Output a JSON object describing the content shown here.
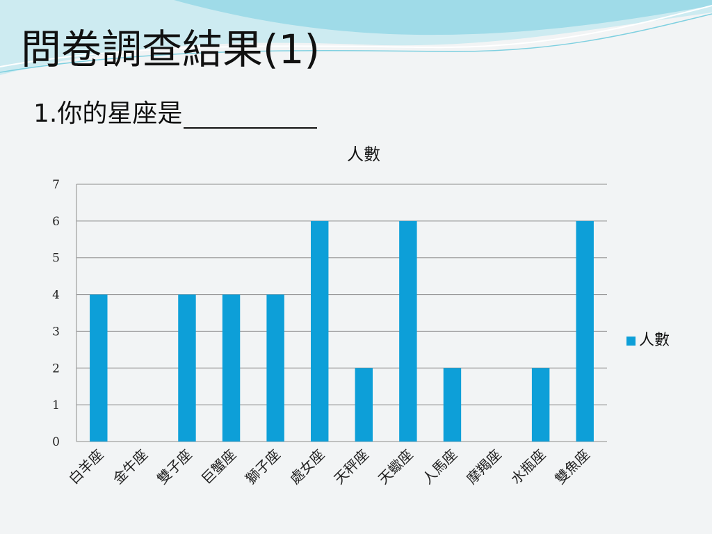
{
  "slide": {
    "title": "問卷調查結果(1)",
    "question_number": "1.",
    "question_text": "你的星座是"
  },
  "colors": {
    "bar": "#0d9fd8",
    "grid": "#8c8c8c",
    "background": "#f2f4f5",
    "wave_light": "#bfe7ef",
    "wave_dark": "#7fd0e0"
  },
  "chart_data": {
    "type": "bar",
    "title": "人數",
    "categories": [
      "白羊座",
      "金牛座",
      "雙子座",
      "巨蟹座",
      "獅子座",
      "處女座",
      "天秤座",
      "天蠍座",
      "人馬座",
      "摩羯座",
      "水瓶座",
      "雙魚座"
    ],
    "series": [
      {
        "name": "人數",
        "values": [
          4,
          0,
          4,
          4,
          4,
          6,
          2,
          6,
          2,
          0,
          2,
          6
        ]
      }
    ],
    "ylim": [
      0,
      7
    ],
    "yticks": [
      0,
      1,
      2,
      3,
      4,
      5,
      6,
      7
    ],
    "grid": true,
    "legend_position": "right"
  }
}
